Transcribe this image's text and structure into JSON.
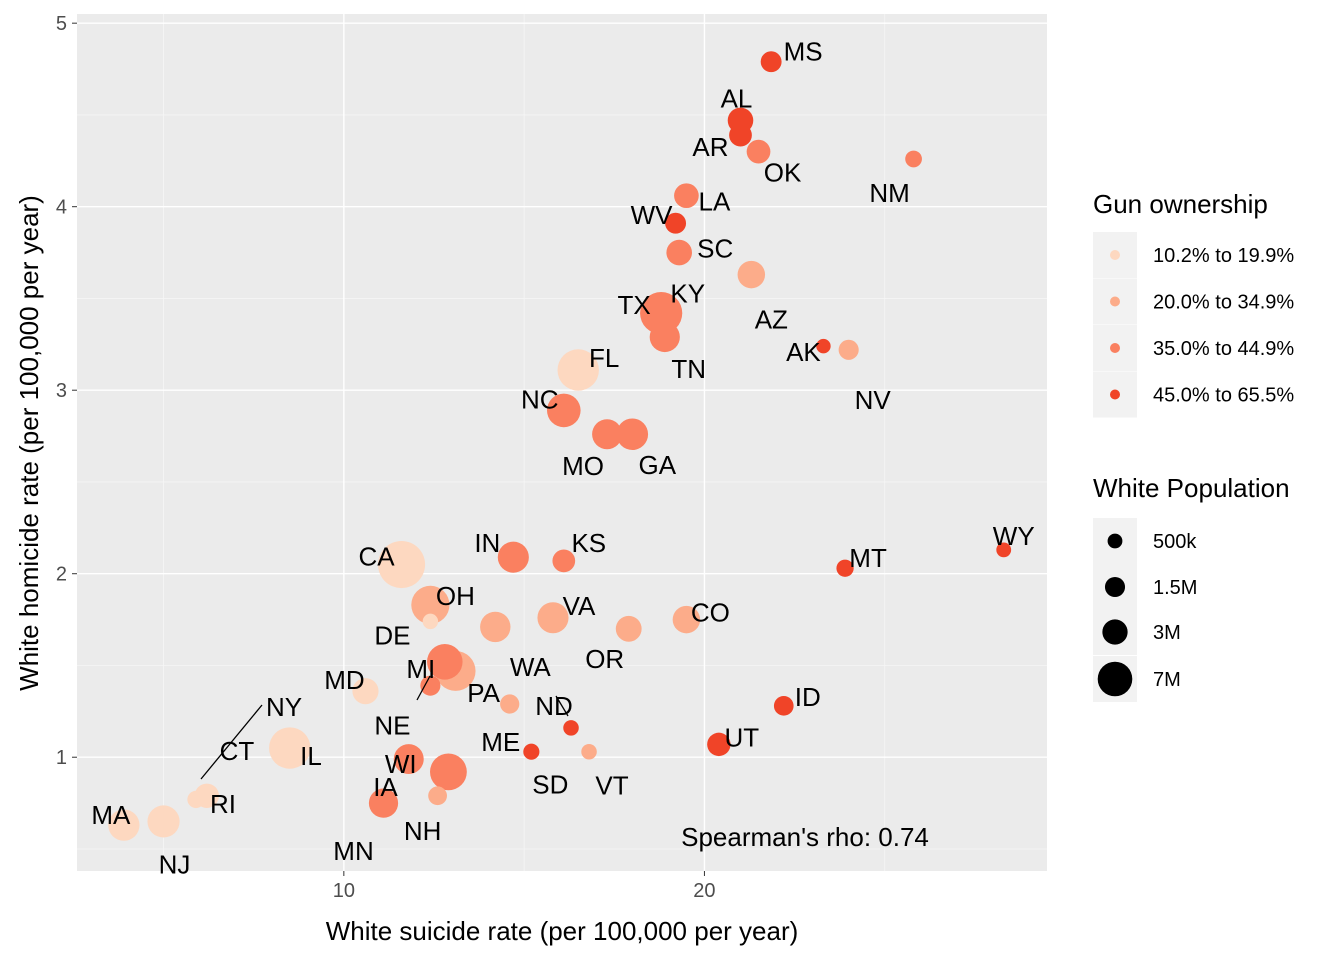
{
  "chart_data": {
    "type": "scatter",
    "xlabel": "White suicide rate (per 100,000 per year)",
    "ylabel": "White homicide rate (per 100,000 per year)",
    "xlim": [
      2.6,
      29.5
    ],
    "ylim": [
      0.38,
      5.05
    ],
    "x_ticks": [
      10,
      20
    ],
    "y_ticks": [
      1,
      2,
      3,
      4,
      5
    ],
    "annotation": "Spearman's rho: 0.74",
    "color_legend": {
      "title": "Gun ownership",
      "entries": [
        {
          "label": "10.2% to 19.9%",
          "color": "#fdd8c0"
        },
        {
          "label": "20.0% to 34.9%",
          "color": "#fcac8a"
        },
        {
          "label": "35.0% to 44.9%",
          "color": "#fa8060"
        },
        {
          "label": "45.0% to 65.5%",
          "color": "#f04428"
        }
      ]
    },
    "size_legend": {
      "title": "White Population",
      "entries": [
        {
          "label": "500k",
          "pop_m": 0.5
        },
        {
          "label": "1.5M",
          "pop_m": 1.5
        },
        {
          "label": "3M",
          "pop_m": 3
        },
        {
          "label": "7M",
          "pop_m": 7
        }
      ]
    },
    "points": [
      {
        "state": "MS",
        "x": 21.85,
        "y": 4.79,
        "gun": 3,
        "pop_m": 1.7
      },
      {
        "state": "AL",
        "x": 21.0,
        "y": 4.47,
        "gun": 3,
        "pop_m": 3.1
      },
      {
        "state": "AR",
        "x": 21.0,
        "y": 4.39,
        "gun": 3,
        "pop_m": 2.2
      },
      {
        "state": "OK",
        "x": 21.5,
        "y": 4.3,
        "gun": 2,
        "pop_m": 2.5
      },
      {
        "state": "NM",
        "x": 25.8,
        "y": 4.26,
        "gun": 2,
        "pop_m": 0.8
      },
      {
        "state": "LA",
        "x": 19.5,
        "y": 4.06,
        "gun": 2,
        "pop_m": 2.8
      },
      {
        "state": "WV",
        "x": 19.2,
        "y": 3.91,
        "gun": 3,
        "pop_m": 1.7
      },
      {
        "state": "SC",
        "x": 19.3,
        "y": 3.75,
        "gun": 2,
        "pop_m": 3.1
      },
      {
        "state": "AZ",
        "x": 21.3,
        "y": 3.63,
        "gun": 1,
        "pop_m": 3.8
      },
      {
        "state": "TX",
        "x": 18.8,
        "y": 3.42,
        "gun": 2,
        "pop_m": 11.5
      },
      {
        "state": "KY",
        "x": 18.9,
        "y": 3.44,
        "gun": 2,
        "pop_m": 3.7
      },
      {
        "state": "AK",
        "x": 23.3,
        "y": 3.24,
        "gun": 3,
        "pop_m": 0.45
      },
      {
        "state": "TN",
        "x": 18.9,
        "y": 3.29,
        "gun": 2,
        "pop_m": 4.9
      },
      {
        "state": "NV",
        "x": 24.0,
        "y": 3.22,
        "gun": 1,
        "pop_m": 1.5
      },
      {
        "state": "FL",
        "x": 16.5,
        "y": 3.11,
        "gun": 0,
        "pop_m": 11.0
      },
      {
        "state": "NC",
        "x": 16.1,
        "y": 2.89,
        "gun": 2,
        "pop_m": 6.5
      },
      {
        "state": "MO",
        "x": 17.3,
        "y": 2.76,
        "gun": 2,
        "pop_m": 4.8
      },
      {
        "state": "GA",
        "x": 18.0,
        "y": 2.76,
        "gun": 2,
        "pop_m": 5.5
      },
      {
        "state": "WY",
        "x": 28.3,
        "y": 2.13,
        "gun": 3,
        "pop_m": 0.5
      },
      {
        "state": "CA",
        "x": 11.6,
        "y": 2.05,
        "gun": 0,
        "pop_m": 15.0
      },
      {
        "state": "IN",
        "x": 14.7,
        "y": 2.09,
        "gun": 2,
        "pop_m": 5.3
      },
      {
        "state": "KS",
        "x": 16.1,
        "y": 2.07,
        "gun": 2,
        "pop_m": 2.2
      },
      {
        "state": "MT",
        "x": 23.9,
        "y": 2.03,
        "gun": 3,
        "pop_m": 0.9
      },
      {
        "state": "OH",
        "x": 12.4,
        "y": 1.83,
        "gun": 1,
        "pop_m": 9.0
      },
      {
        "state": "DE",
        "x": 12.4,
        "y": 1.74,
        "gun": 0,
        "pop_m": 0.6
      },
      {
        "state": "VA",
        "x": 15.8,
        "y": 1.76,
        "gun": 1,
        "pop_m": 5.3
      },
      {
        "state": "CO",
        "x": 19.5,
        "y": 1.75,
        "gun": 1,
        "pop_m": 3.8
      },
      {
        "state": "WA",
        "x": 14.2,
        "y": 1.71,
        "gun": 1,
        "pop_m": 5.0
      },
      {
        "state": "OR",
        "x": 17.9,
        "y": 1.7,
        "gun": 1,
        "pop_m": 3.2
      },
      {
        "state": "MI",
        "x": 12.8,
        "y": 1.52,
        "gun": 2,
        "pop_m": 7.5
      },
      {
        "state": "PA",
        "x": 13.1,
        "y": 1.47,
        "gun": 1,
        "pop_m": 10.0
      },
      {
        "state": "MD",
        "x": 10.6,
        "y": 1.36,
        "gun": 0,
        "pop_m": 3.3
      },
      {
        "state": "NE",
        "x": 12.4,
        "y": 1.39,
        "gun": 2,
        "pop_m": 1.5
      },
      {
        "state": "ND",
        "x": 16.3,
        "y": 1.16,
        "gun": 3,
        "pop_m": 0.6
      },
      {
        "state": "ME",
        "x": 14.6,
        "y": 1.29,
        "gun": 1,
        "pop_m": 1.3
      },
      {
        "state": "ID",
        "x": 22.2,
        "y": 1.28,
        "gun": 3,
        "pop_m": 1.4
      },
      {
        "state": "UT",
        "x": 20.4,
        "y": 1.07,
        "gun": 3,
        "pop_m": 2.4
      },
      {
        "state": "NY",
        "x": 8.5,
        "y": 1.05,
        "gun": 0,
        "pop_m": 11.0
      },
      {
        "state": "SD",
        "x": 15.2,
        "y": 1.03,
        "gun": 3,
        "pop_m": 0.7
      },
      {
        "state": "VT",
        "x": 16.8,
        "y": 1.03,
        "gun": 1,
        "pop_m": 0.6
      },
      {
        "state": "WI",
        "x": 11.8,
        "y": 0.99,
        "gun": 2,
        "pop_m": 4.8
      },
      {
        "state": "IL",
        "x": 12.9,
        "y": 0.92,
        "gun": 2,
        "pop_m": 8.2
      },
      {
        "state": "CT",
        "x": 6.2,
        "y": 0.79,
        "gun": 0,
        "pop_m": 2.7
      },
      {
        "state": "RI",
        "x": 5.9,
        "y": 0.77,
        "gun": 0,
        "pop_m": 0.9
      },
      {
        "state": "IA",
        "x": 11.1,
        "y": 0.75,
        "gun": 2,
        "pop_m": 2.8
      },
      {
        "state": "NH",
        "x": 12.6,
        "y": 0.79,
        "gun": 1,
        "pop_m": 1.2
      },
      {
        "state": "MA",
        "x": 3.9,
        "y": 0.63,
        "gun": 0,
        "pop_m": 5.4
      },
      {
        "state": "NJ",
        "x": 5.0,
        "y": 0.65,
        "gun": 0,
        "pop_m": 5.8
      },
      {
        "state": "MN",
        "x": 11.1,
        "y": 0.75,
        "gun": 2,
        "pop_m": 4.5
      }
    ]
  }
}
